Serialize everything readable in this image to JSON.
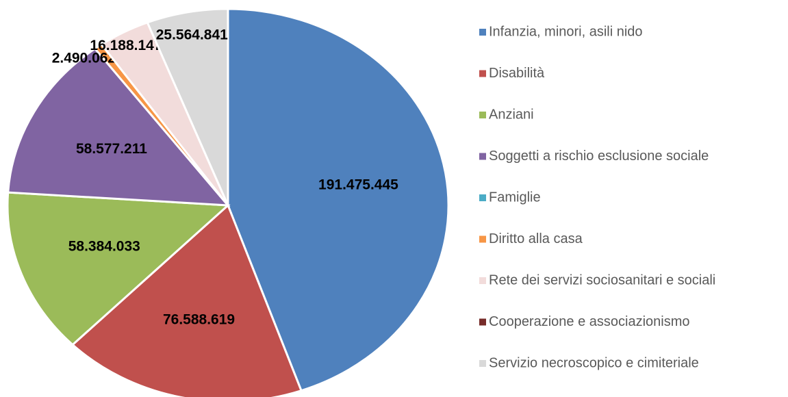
{
  "chart_data": {
    "type": "pie",
    "categories": [
      "Infanzia, minori, asili nido",
      "Disabilità",
      "Anziani",
      "Soggetti a rischio esclusione sociale",
      "Famiglie",
      "Diritto alla casa",
      "Rete dei servizi sociosanitari e sociali",
      "Cooperazione e associazionismo",
      "Servizio necroscopico e cimiteriale"
    ],
    "values": [
      191475445,
      76588619,
      58384033,
      58577211,
      0,
      2490062,
      16188147,
      0,
      25564841
    ],
    "value_labels": [
      "191.475.445",
      "76.588.619",
      "58.384.033",
      "58.577.211",
      null,
      "2.490.062",
      "16.188.147",
      null,
      "25.564.841"
    ],
    "colors": [
      "#4f81bd",
      "#c0504d",
      "#9bbb59",
      "#8064a2",
      "#4bacc6",
      "#f79646",
      "#f2dcdb",
      "#772c2a",
      "#d9d9d9"
    ],
    "legend": "right"
  }
}
